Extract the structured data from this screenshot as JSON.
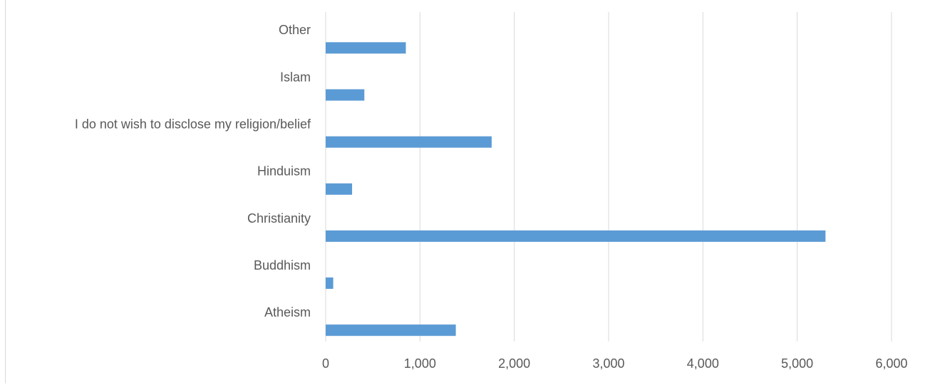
{
  "chart_data": {
    "type": "bar",
    "orientation": "horizontal",
    "categories": [
      "Atheism",
      "Buddhism",
      "Christianity",
      "Hinduism",
      "I do not wish to disclose my religion/belief",
      "Islam",
      "Other"
    ],
    "values": [
      1380,
      80,
      5300,
      280,
      1760,
      410,
      850
    ],
    "title": "",
    "xlabel": "",
    "ylabel": "",
    "xlim": [
      0,
      6000
    ],
    "x_ticks": [
      0,
      1000,
      2000,
      3000,
      4000,
      5000,
      6000
    ],
    "x_tick_labels": [
      "0",
      "1,000",
      "2,000",
      "3,000",
      "4,000",
      "5,000",
      "6,000"
    ],
    "grid": "vertical",
    "legend": "none",
    "bar_color": "#5b9bd5",
    "grid_color": "#d9d9d9"
  }
}
